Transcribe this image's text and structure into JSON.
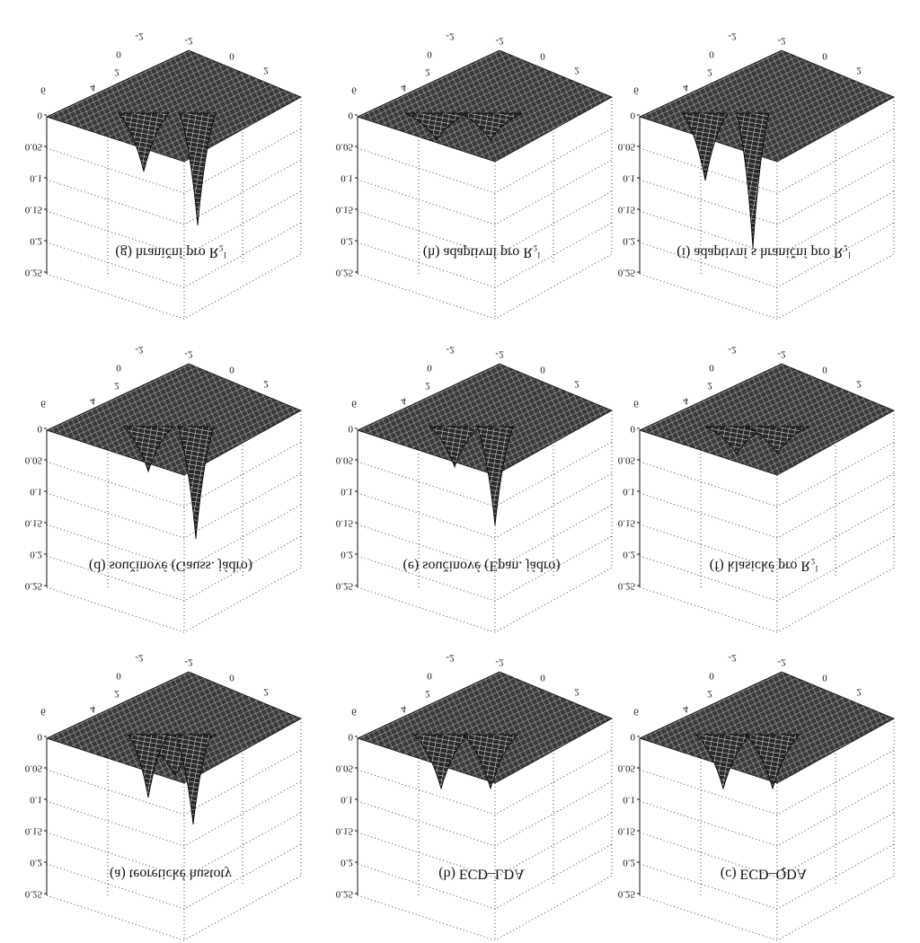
{
  "panels": [
    {
      "caption": "(a) teoretické hustoty",
      "z_ticks": [
        "0",
        "0.05",
        "0.1",
        "0.15",
        "0.2",
        "0.25"
      ],
      "x_ticks": [
        "6",
        "4",
        "2",
        "0",
        "-2"
      ],
      "y_ticks": [
        "-2",
        "0",
        "2"
      ]
    },
    {
      "caption": "(b) ECD–LDA",
      "z_ticks": [
        "0",
        "0.05",
        "0.1",
        "0.15",
        "0.2",
        "0.25"
      ],
      "x_ticks": [
        "6",
        "4",
        "2",
        "0",
        "-2"
      ],
      "y_ticks": [
        "-2",
        "0",
        "2"
      ]
    },
    {
      "caption": "(c) ECD–QDA",
      "z_ticks": [
        "0",
        "0.05",
        "0.1",
        "0.15",
        "0.2",
        "0.25"
      ],
      "x_ticks": [
        "6",
        "4",
        "2",
        "0",
        "-2"
      ],
      "y_ticks": [
        "-2",
        "0",
        "2"
      ]
    },
    {
      "caption": "(d) součinové (Gauss. jádro)",
      "z_ticks": [
        "0",
        "0.05",
        "0.1",
        "0.15",
        "0.2",
        "0.25"
      ],
      "x_ticks": [
        "6",
        "4",
        "2",
        "0",
        "-2"
      ],
      "y_ticks": [
        "-2",
        "0",
        "2"
      ]
    },
    {
      "caption": "(e) součinové (Epan. jádro)",
      "z_ticks": [
        "0",
        "0.05",
        "0.1",
        "0.15",
        "0.2",
        "0.25"
      ],
      "x_ticks": [
        "6",
        "4",
        "2",
        "0",
        "-2"
      ],
      "y_ticks": [
        "-2",
        "0",
        "2"
      ]
    },
    {
      "caption": "(f) klasické pro R₂ˡ",
      "z_ticks": [
        "0",
        "0.05",
        "0.1",
        "0.15",
        "0.2",
        "0.25"
      ],
      "x_ticks": [
        "6",
        "4",
        "2",
        "0",
        "-2"
      ],
      "y_ticks": [
        "-2",
        "0",
        "2"
      ]
    },
    {
      "caption": "(g) hraniční pro R₂ˡ",
      "z_ticks": [
        "0",
        "0.05",
        "0.1",
        "0.15",
        "0.2",
        "0.25"
      ],
      "x_ticks": [
        "6",
        "4",
        "2",
        "0",
        "-2"
      ],
      "y_ticks": [
        "-2",
        "0",
        "2"
      ]
    },
    {
      "caption": "(h) adaptivní pro R₂ˡ",
      "z_ticks": [
        "0",
        "0.05",
        "0.1",
        "0.15",
        "0.2",
        "0.25"
      ],
      "x_ticks": [
        "6",
        "4",
        "2",
        "0",
        "-2"
      ],
      "y_ticks": [
        "-2",
        "0",
        "2"
      ]
    },
    {
      "caption": "(i) adaptivní s hraniční pro R₂ˡ",
      "z_ticks": [
        "0",
        "0.05",
        "0.1",
        "0.15",
        "0.2",
        "0.25"
      ],
      "x_ticks": [
        "6",
        "4",
        "2",
        "0",
        "-2"
      ],
      "y_ticks": [
        "-2",
        "0",
        "2"
      ]
    }
  ]
}
